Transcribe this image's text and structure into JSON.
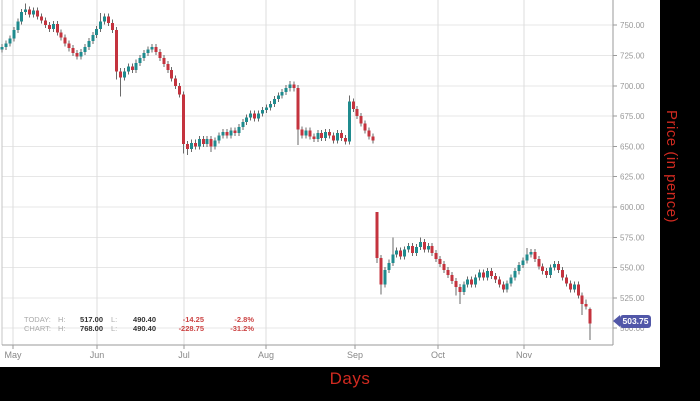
{
  "axis_titles": {
    "x": "Days",
    "y": "Price (in pence)"
  },
  "last_price_tag": "503.75",
  "stats": {
    "rows": [
      {
        "label": "TODAY:",
        "h_key": "H:",
        "high": "517.00",
        "l_key": "L:",
        "low": "490.40",
        "change": "-14.25",
        "change_pct": "-2.8%"
      },
      {
        "label": "CHART:",
        "h_key": "H:",
        "high": "768.00",
        "l_key": "L:",
        "low": "490.40",
        "change": "-228.75",
        "change_pct": "-31.2%"
      }
    ]
  },
  "colors": {
    "up_candle": "#1f8b8e",
    "down_candle": "#c4333e",
    "wick": "#6a6a6a",
    "grid_h": "#e7e7e7",
    "grid_v": "#dddddd",
    "axis_line": "#9a9a9a",
    "tick_label": "#999999",
    "month_label": "#888888",
    "price_tag_bg": "#5157a8",
    "axis_title_red": "#d02a20",
    "border_black": "#000000",
    "surface_white": "#ffffff"
  },
  "chart_data": {
    "type": "candlestick",
    "title": "",
    "xlabel": "Days",
    "ylabel": "Price (in pence)",
    "x_tick_labels": [
      "May",
      "Jun",
      "Jul",
      "Aug",
      "Sep",
      "Oct",
      "Nov"
    ],
    "y_ticks": [
      750,
      725,
      700,
      675,
      650,
      625,
      600,
      575,
      550,
      525,
      500
    ],
    "ylim": [
      486,
      770
    ],
    "grid": true,
    "last_price": 503.75,
    "today_high": 517.0,
    "today_low": 490.4,
    "today_change": -14.25,
    "today_change_pct": -2.8,
    "chart_high": 768.0,
    "chart_low": 490.4,
    "chart_change": -228.75,
    "chart_change_pct": -31.2,
    "candle_format": [
      "open",
      "high",
      "low",
      "close"
    ],
    "candles": [
      [
        730,
        734.5,
        727.5,
        732
      ],
      [
        732,
        737.5,
        729.5,
        735
      ],
      [
        735,
        741.5,
        732.5,
        739
      ],
      [
        739,
        748.5,
        736.5,
        746
      ],
      [
        746,
        755.5,
        743.5,
        753
      ],
      [
        753,
        763.5,
        750.5,
        761
      ],
      [
        761,
        768,
        758.5,
        763
      ],
      [
        763,
        765.5,
        756.5,
        759
      ],
      [
        759,
        764.5,
        756.5,
        762
      ],
      [
        762,
        764.5,
        754.5,
        757
      ],
      [
        757,
        759.5,
        751.5,
        754
      ],
      [
        754,
        756.5,
        747.5,
        750
      ],
      [
        750,
        752.5,
        744.5,
        747
      ],
      [
        747,
        753.5,
        744.5,
        751
      ],
      [
        751,
        753.5,
        741.5,
        744
      ],
      [
        744,
        746.5,
        737.5,
        740
      ],
      [
        740,
        742.5,
        732.5,
        735
      ],
      [
        735,
        737.5,
        728.5,
        731
      ],
      [
        731,
        733.5,
        724.5,
        727
      ],
      [
        727,
        729.5,
        721.5,
        724
      ],
      [
        724,
        730.5,
        721.5,
        728
      ],
      [
        728,
        734.5,
        725.5,
        732
      ],
      [
        732,
        739.5,
        729.5,
        737
      ],
      [
        737,
        744.5,
        734.5,
        742
      ],
      [
        742,
        749.5,
        739.5,
        747
      ],
      [
        747,
        760,
        744.5,
        753
      ],
      [
        753,
        759.5,
        750.5,
        757
      ],
      [
        757,
        759.5,
        749.5,
        752
      ],
      [
        752,
        754.5,
        743.5,
        746
      ],
      [
        746,
        748.5,
        705,
        712
      ],
      [
        712,
        714.5,
        691,
        707
      ],
      [
        707,
        714.5,
        704.5,
        712
      ],
      [
        712,
        718.5,
        709.5,
        716
      ],
      [
        716,
        718.5,
        710.5,
        713
      ],
      [
        713,
        721.5,
        710.5,
        719
      ],
      [
        719,
        725.5,
        716.5,
        723
      ],
      [
        723,
        729.5,
        720.5,
        727
      ],
      [
        727,
        732.5,
        724.5,
        730
      ],
      [
        730,
        734.5,
        727.5,
        732
      ],
      [
        732,
        734.5,
        725.5,
        728
      ],
      [
        728,
        730.5,
        720.5,
        723
      ],
      [
        723,
        725.5,
        715.5,
        718
      ],
      [
        718,
        720.5,
        710.5,
        713
      ],
      [
        713,
        715.5,
        703.5,
        706
      ],
      [
        706,
        708.5,
        697.5,
        700
      ],
      [
        700,
        702.5,
        690.5,
        693
      ],
      [
        693,
        695.5,
        644,
        652
      ],
      [
        652,
        654.5,
        643,
        648
      ],
      [
        648,
        655.5,
        645.5,
        653
      ],
      [
        653,
        655.5,
        647.5,
        650
      ],
      [
        650,
        658.5,
        647.5,
        656
      ],
      [
        656,
        658.5,
        649.5,
        652
      ],
      [
        652,
        658.5,
        649.5,
        656
      ],
      [
        656,
        658.5,
        645.5,
        650
      ],
      [
        650,
        657.5,
        647.5,
        655
      ],
      [
        655,
        661.5,
        652.5,
        659
      ],
      [
        659,
        664.5,
        656.5,
        662
      ],
      [
        662,
        664.5,
        656.5,
        659
      ],
      [
        659,
        665.5,
        656.5,
        663
      ],
      [
        663,
        665.5,
        658.5,
        661
      ],
      [
        661,
        668.5,
        658.5,
        666
      ],
      [
        666,
        672.5,
        663.5,
        670
      ],
      [
        670,
        676.5,
        667.5,
        674
      ],
      [
        674,
        679.5,
        671.5,
        677
      ],
      [
        677,
        679.5,
        670.5,
        673
      ],
      [
        673,
        679.5,
        670.5,
        677
      ],
      [
        677,
        682.5,
        674.5,
        680
      ],
      [
        680,
        684.5,
        677.5,
        682
      ],
      [
        682,
        687.5,
        679.5,
        685
      ],
      [
        685,
        691.5,
        682.5,
        689
      ],
      [
        689,
        694.5,
        686.5,
        692
      ],
      [
        692,
        697.5,
        689.5,
        695
      ],
      [
        695,
        700.5,
        692.5,
        698
      ],
      [
        698,
        704,
        695.5,
        701
      ],
      [
        701,
        703.5,
        695.5,
        698
      ],
      [
        698,
        700.5,
        651,
        664
      ],
      [
        664,
        666.5,
        656.5,
        659
      ],
      [
        659,
        665.5,
        656.5,
        663
      ],
      [
        663,
        665.5,
        655.5,
        658
      ],
      [
        658,
        660.5,
        653.5,
        656
      ],
      [
        656,
        663.5,
        653.5,
        661
      ],
      [
        661,
        663.5,
        654.5,
        657
      ],
      [
        657,
        664.5,
        654.5,
        662
      ],
      [
        662,
        664.5,
        656.5,
        659
      ],
      [
        659,
        661.5,
        652.5,
        655
      ],
      [
        655,
        663.5,
        652.5,
        661
      ],
      [
        661,
        663.5,
        654.5,
        657
      ],
      [
        657,
        659.5,
        651.5,
        654
      ],
      [
        654,
        692,
        651.5,
        687
      ],
      [
        687,
        689.5,
        678.5,
        681
      ],
      [
        681,
        683.5,
        672.5,
        675
      ],
      [
        675,
        677.5,
        666.5,
        669
      ],
      [
        669,
        671.5,
        660.5,
        663
      ],
      [
        663,
        665.5,
        655.5,
        658
      ],
      [
        658,
        660.5,
        652.5,
        655
      ],
      [
        596,
        596,
        554,
        558
      ],
      [
        558,
        560.5,
        528,
        536
      ],
      [
        536,
        550.5,
        533.5,
        548
      ],
      [
        548,
        556.5,
        545.5,
        554
      ],
      [
        554,
        575,
        551.5,
        561
      ],
      [
        561,
        566.5,
        558.5,
        564
      ],
      [
        564,
        566.5,
        556.5,
        559
      ],
      [
        559,
        567.5,
        556.5,
        565
      ],
      [
        565,
        570.5,
        562.5,
        568
      ],
      [
        568,
        570.5,
        559.5,
        562
      ],
      [
        562,
        569.5,
        559.5,
        567
      ],
      [
        567,
        575,
        564.5,
        571
      ],
      [
        571,
        573.5,
        562.5,
        565
      ],
      [
        565,
        570.5,
        562.5,
        568
      ],
      [
        568,
        570.5,
        559.5,
        562
      ],
      [
        562,
        564.5,
        554.5,
        557
      ],
      [
        557,
        559.5,
        550.5,
        553
      ],
      [
        553,
        555.5,
        545.5,
        548
      ],
      [
        548,
        550.5,
        541.5,
        544
      ],
      [
        544,
        546.5,
        536.5,
        539
      ],
      [
        539,
        541.5,
        527,
        534
      ],
      [
        534,
        536.5,
        520,
        530
      ],
      [
        530,
        538.5,
        527.5,
        536
      ],
      [
        536,
        542.5,
        533.5,
        540
      ],
      [
        540,
        542.5,
        533.5,
        536
      ],
      [
        536,
        544.5,
        533.5,
        542
      ],
      [
        542,
        548.5,
        539.5,
        546
      ],
      [
        546,
        548.5,
        539.5,
        542
      ],
      [
        542,
        549.5,
        539.5,
        547
      ],
      [
        547,
        549.5,
        540.5,
        543
      ],
      [
        543,
        545.5,
        537.5,
        540
      ],
      [
        540,
        542.5,
        533.5,
        536
      ],
      [
        536,
        538.5,
        529.5,
        532
      ],
      [
        532,
        539.5,
        529.5,
        537
      ],
      [
        537,
        544.5,
        534.5,
        542
      ],
      [
        542,
        549.5,
        539.5,
        547
      ],
      [
        547,
        554.5,
        544.5,
        552
      ],
      [
        552,
        558.5,
        549.5,
        556
      ],
      [
        556,
        566,
        553.5,
        561
      ],
      [
        561,
        565.5,
        558.5,
        563
      ],
      [
        563,
        565.5,
        554.5,
        557
      ],
      [
        557,
        559.5,
        548.5,
        551
      ],
      [
        551,
        553.5,
        544.5,
        547
      ],
      [
        547,
        549.5,
        541.5,
        544
      ],
      [
        544,
        552.5,
        541.5,
        550
      ],
      [
        550,
        555.5,
        547.5,
        553
      ],
      [
        553,
        555.5,
        545.5,
        548
      ],
      [
        548,
        550.5,
        539.5,
        542
      ],
      [
        542,
        544.5,
        534.5,
        537
      ],
      [
        537,
        539.5,
        529.5,
        532
      ],
      [
        532,
        538.5,
        529.5,
        536
      ],
      [
        536,
        538.5,
        524.5,
        527
      ],
      [
        527,
        529.5,
        511,
        520
      ],
      [
        520,
        523.5,
        515.5,
        518
      ],
      [
        516,
        517,
        490.4,
        503.75
      ]
    ]
  }
}
